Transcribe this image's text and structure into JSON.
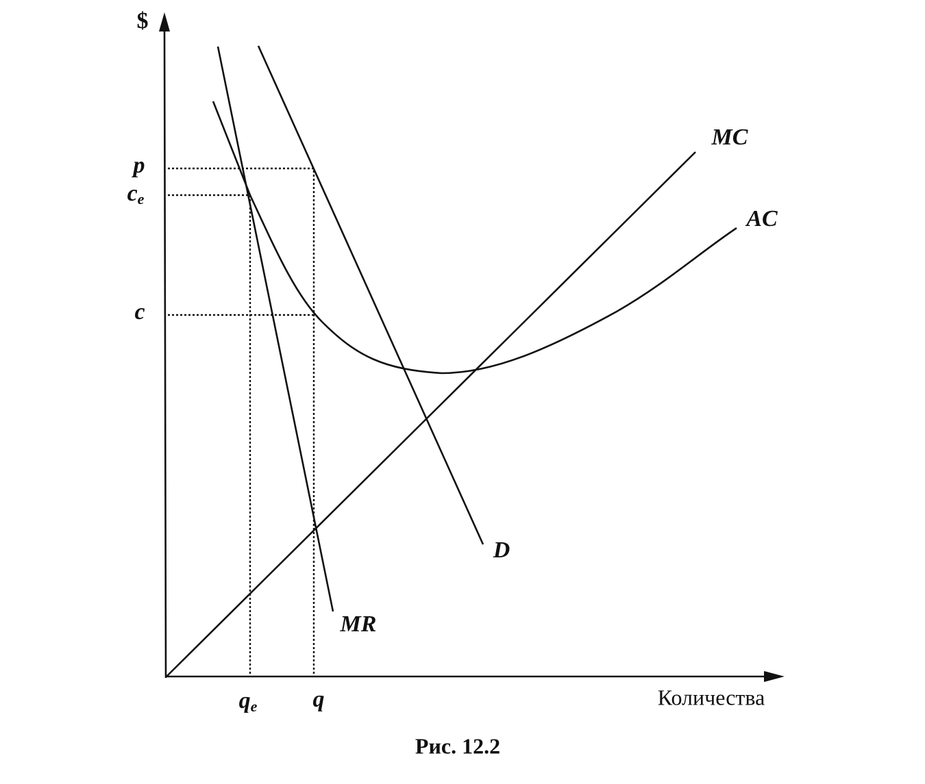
{
  "axes": {
    "y_label": "$",
    "x_label": "Количества"
  },
  "y_labels": {
    "p": "p",
    "ce": {
      "main": "c",
      "sub": "e"
    },
    "c": "c"
  },
  "x_labels": {
    "qe": {
      "main": "q",
      "sub": "e"
    },
    "q": "q"
  },
  "curves": {
    "mc": "MC",
    "ac": "AC",
    "d": "D",
    "mr": "MR"
  },
  "caption": "Рис. 12.2"
}
